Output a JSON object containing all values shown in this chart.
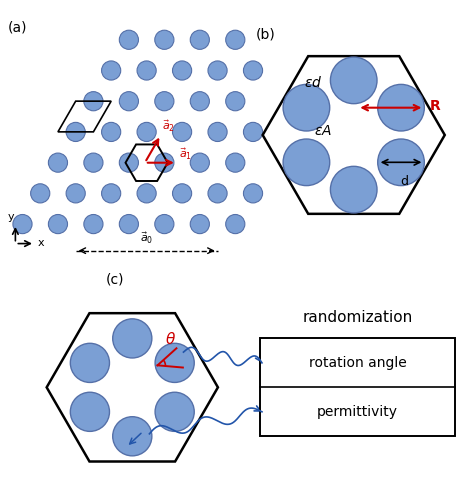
{
  "circle_color": "#7B9FD4",
  "circle_edge": "#5570a8",
  "hex_edge": "#111111",
  "arrow_color": "#cc0000",
  "wavy_color": "#2255aa",
  "bg_color": "#ffffff",
  "panel_a_label": "(a)",
  "panel_b_label": "(b)",
  "panel_c_label": "(c)"
}
